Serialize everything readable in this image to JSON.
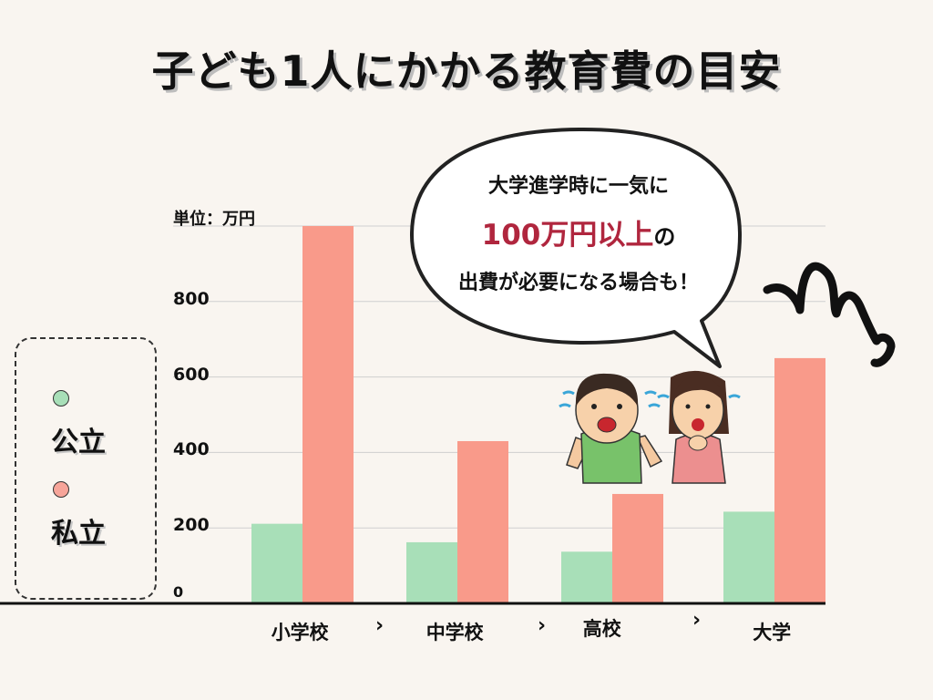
{
  "title": "子ども1人にかかる教育費の目安",
  "unit_label": "単位：万円",
  "legend": [
    {
      "label": "公立",
      "color": "#a8dfb8"
    },
    {
      "label": "私立",
      "color": "#f7a59a"
    }
  ],
  "bubble": {
    "line1": "大学進学時に一気に",
    "line2_highlight": "100万円以上",
    "line2_suffix": "の",
    "line3": "出費が必要になる場合も！"
  },
  "arrow_glyph": "›",
  "chart_data": {
    "type": "bar",
    "categories": [
      "小学校",
      "中学校",
      "高校",
      "大学"
    ],
    "series": [
      {
        "name": "公立",
        "values": [
          211,
          162,
          137,
          243
        ],
        "color": "#a8dfb8"
      },
      {
        "name": "私立",
        "values": [
          1000,
          430,
          290,
          650
        ],
        "color": "#f99a8a"
      }
    ],
    "yticks": [
      "0",
      "200",
      "400",
      "600",
      "800"
    ],
    "ylim": [
      0,
      1000
    ],
    "grid": true,
    "ylabel": "単位：万円"
  }
}
